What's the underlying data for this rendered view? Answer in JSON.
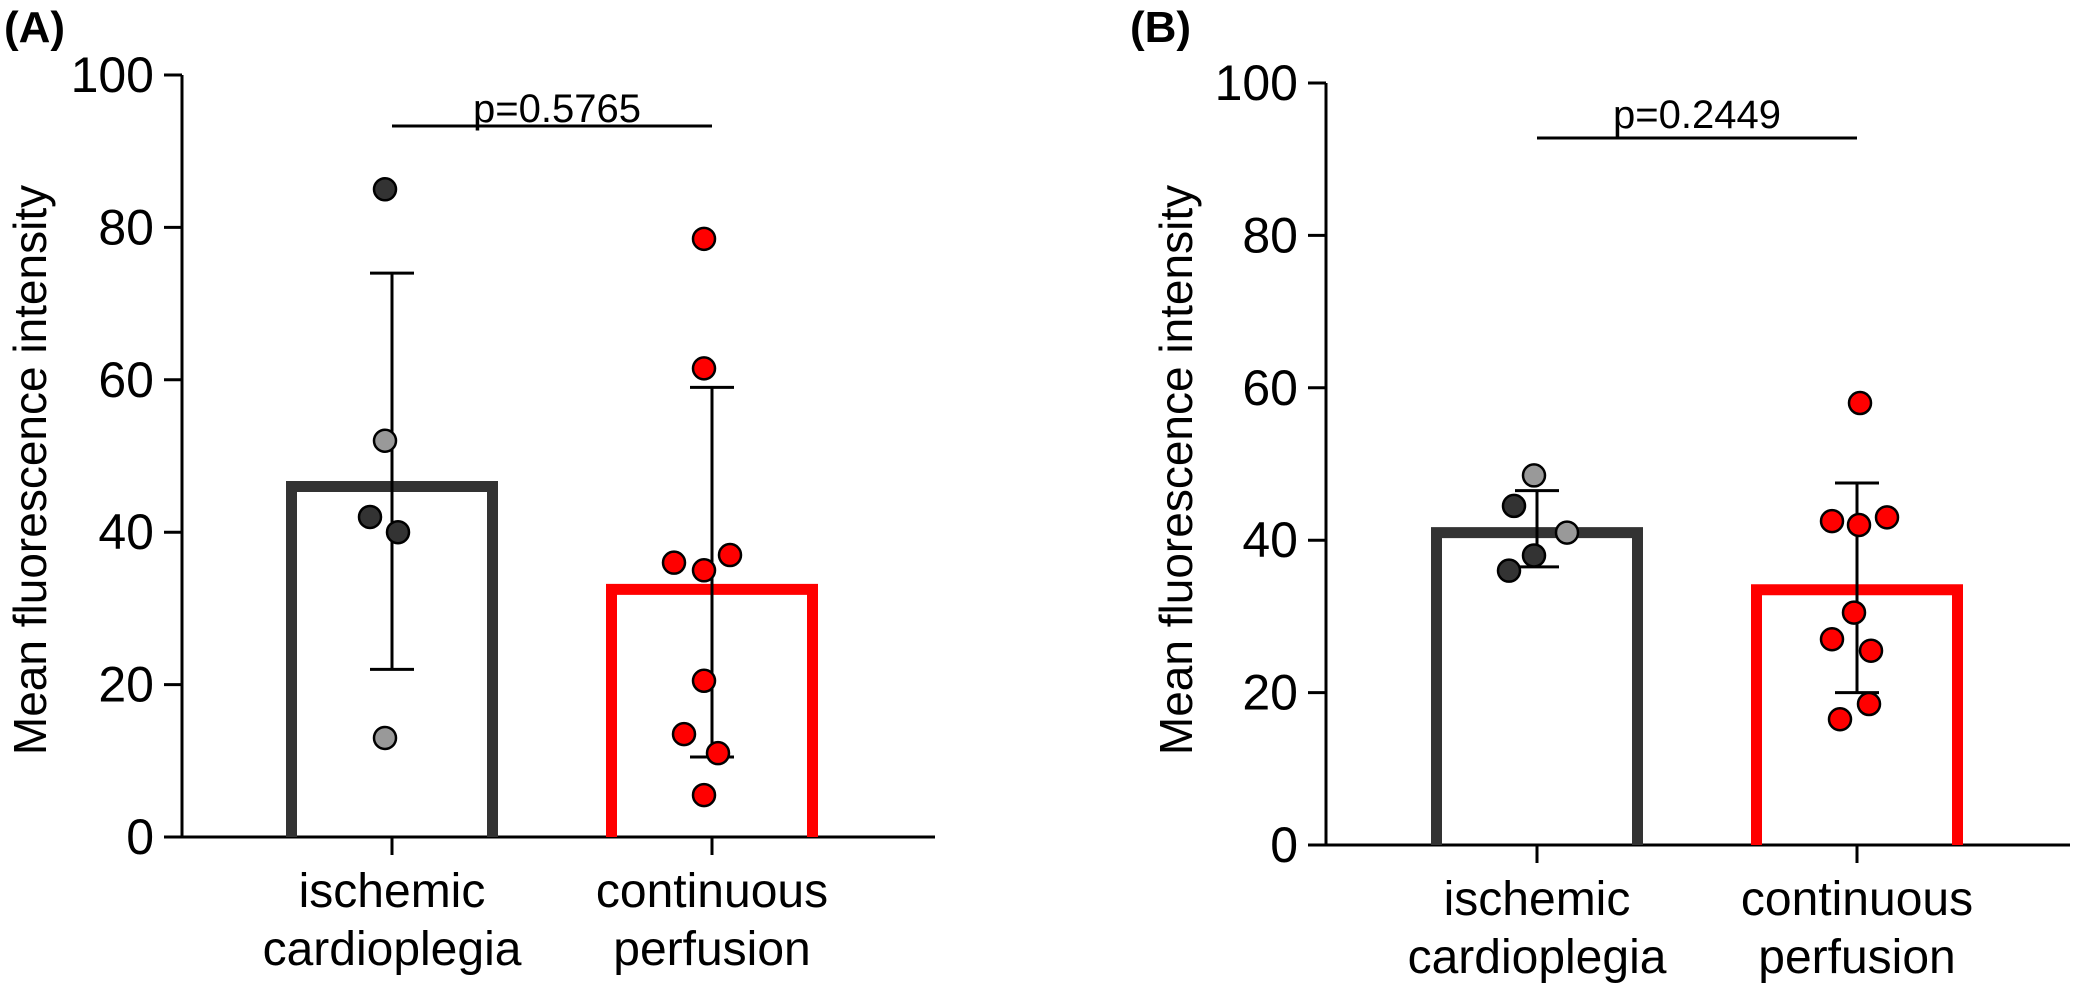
{
  "chart_data": [
    {
      "type": "bar",
      "panel_label": "(A)",
      "categories": [
        "ischemic\ncardioplegia",
        "continuous\nperfusion"
      ],
      "ylabel": "Mean fluorescence intensity",
      "ylim": [
        0,
        100
      ],
      "yticks": [
        0,
        20,
        40,
        60,
        80,
        100
      ],
      "annotation": "p=0.5765",
      "series": [
        {
          "values": [
            46,
            32.5
          ],
          "error_low": [
            22,
            10.5
          ],
          "error_high": [
            74,
            59
          ],
          "colors": [
            "#333333",
            "#ff0000"
          ],
          "points": [
            [
              {
                "y": 85,
                "color": "#333333",
                "dx": -7
              },
              {
                "y": 52,
                "color": "#999999",
                "dx": -7
              },
              {
                "y": 42,
                "color": "#333333",
                "dx": -22
              },
              {
                "y": 40,
                "color": "#333333",
                "dx": 6
              },
              {
                "y": 13,
                "color": "#999999",
                "dx": -7
              }
            ],
            [
              {
                "y": 78.5,
                "color": "#ff0000",
                "dx": -8
              },
              {
                "y": 61.5,
                "color": "#ff0000",
                "dx": -8
              },
              {
                "y": 37,
                "color": "#ff0000",
                "dx": 18
              },
              {
                "y": 36,
                "color": "#ff0000",
                "dx": -38
              },
              {
                "y": 35,
                "color": "#ff0000",
                "dx": -8
              },
              {
                "y": 20.5,
                "color": "#ff0000",
                "dx": -8
              },
              {
                "y": 13.5,
                "color": "#ff0000",
                "dx": -28
              },
              {
                "y": 11,
                "color": "#ff0000",
                "dx": 6
              },
              {
                "y": 5.5,
                "color": "#ff0000",
                "dx": -8
              }
            ]
          ]
        }
      ]
    },
    {
      "type": "bar",
      "panel_label": "(B)",
      "categories": [
        "ischemic\ncardioplegia",
        "continuous\nperfusion"
      ],
      "ylabel": "Mean fluorescence intensity",
      "ylim": [
        0,
        100
      ],
      "yticks": [
        0,
        20,
        40,
        60,
        80,
        100
      ],
      "annotation": "p=0.2449",
      "series": [
        {
          "values": [
            41,
            33.5
          ],
          "error_low": [
            36.5,
            20
          ],
          "error_high": [
            46.5,
            47.5
          ],
          "colors": [
            "#333333",
            "#ff0000"
          ],
          "points": [
            [
              {
                "y": 48.5,
                "color": "#999999",
                "dx": -3
              },
              {
                "y": 44.5,
                "color": "#333333",
                "dx": -23
              },
              {
                "y": 41,
                "color": "#999999",
                "dx": 30
              },
              {
                "y": 38,
                "color": "#333333",
                "dx": -3
              },
              {
                "y": 36,
                "color": "#333333",
                "dx": -28
              }
            ],
            [
              {
                "y": 58,
                "color": "#ff0000",
                "dx": 3
              },
              {
                "y": 43,
                "color": "#ff0000",
                "dx": 30
              },
              {
                "y": 42.5,
                "color": "#ff0000",
                "dx": -25
              },
              {
                "y": 42,
                "color": "#ff0000",
                "dx": 2
              },
              {
                "y": 30.5,
                "color": "#ff0000",
                "dx": -3
              },
              {
                "y": 27,
                "color": "#ff0000",
                "dx": -25
              },
              {
                "y": 25.5,
                "color": "#ff0000",
                "dx": 14
              },
              {
                "y": 18.5,
                "color": "#ff0000",
                "dx": 12
              },
              {
                "y": 16.5,
                "color": "#ff0000",
                "dx": -17
              }
            ]
          ]
        }
      ]
    }
  ]
}
